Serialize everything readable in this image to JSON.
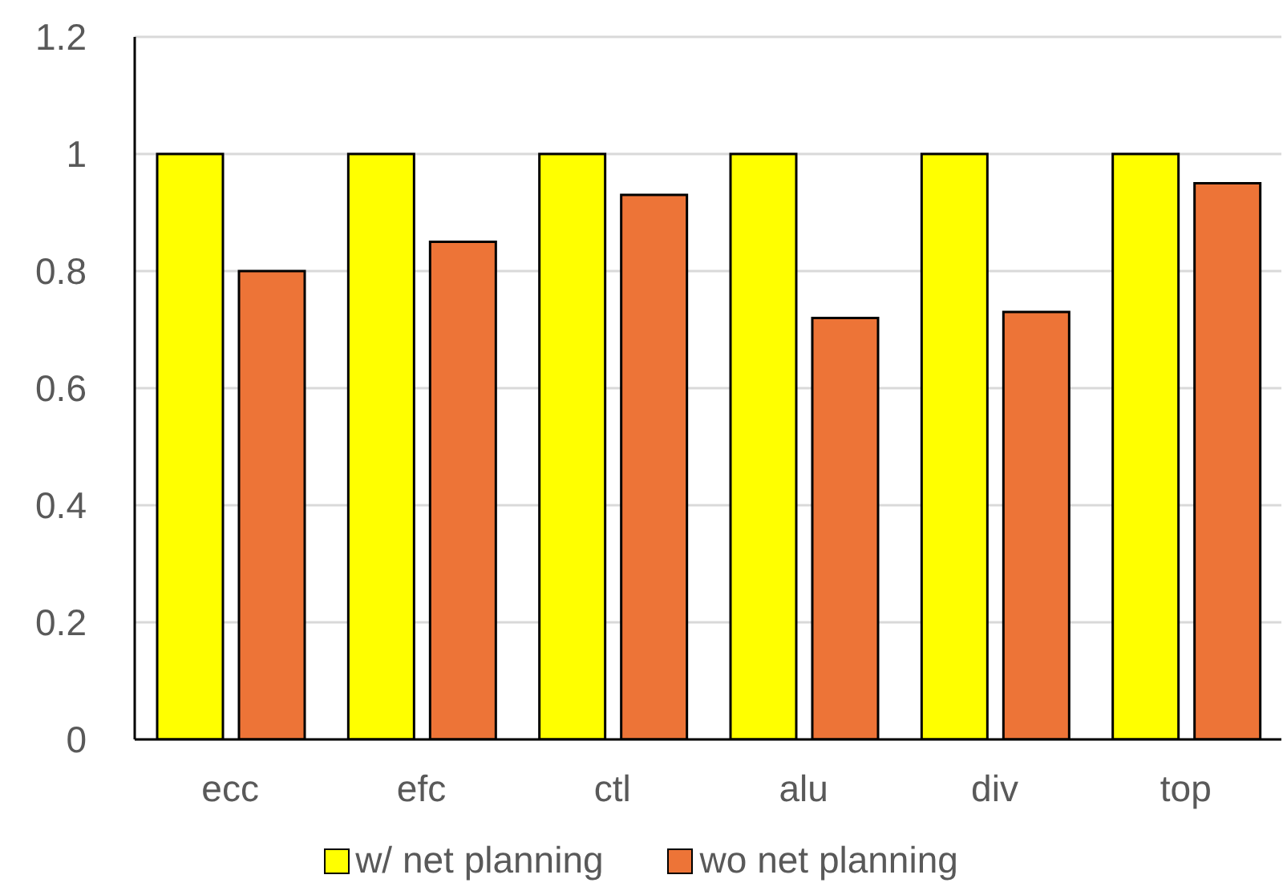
{
  "chart_data": {
    "type": "bar",
    "categories": [
      "ecc",
      "efc",
      "ctl",
      "alu",
      "div",
      "top"
    ],
    "series": [
      {
        "name": "w/ net planning",
        "color": "#ffff00",
        "values": [
          1,
          1,
          1,
          1,
          1,
          1
        ]
      },
      {
        "name": "wo net planning",
        "color": "#ed7437",
        "values": [
          0.8,
          0.85,
          0.93,
          0.72,
          0.73,
          0.95
        ]
      }
    ],
    "ylim": [
      0,
      1.2
    ],
    "yticks": [
      0,
      0.2,
      0.4,
      0.6,
      0.8,
      1,
      1.2
    ],
    "grid": "y",
    "legend": "bottom"
  }
}
